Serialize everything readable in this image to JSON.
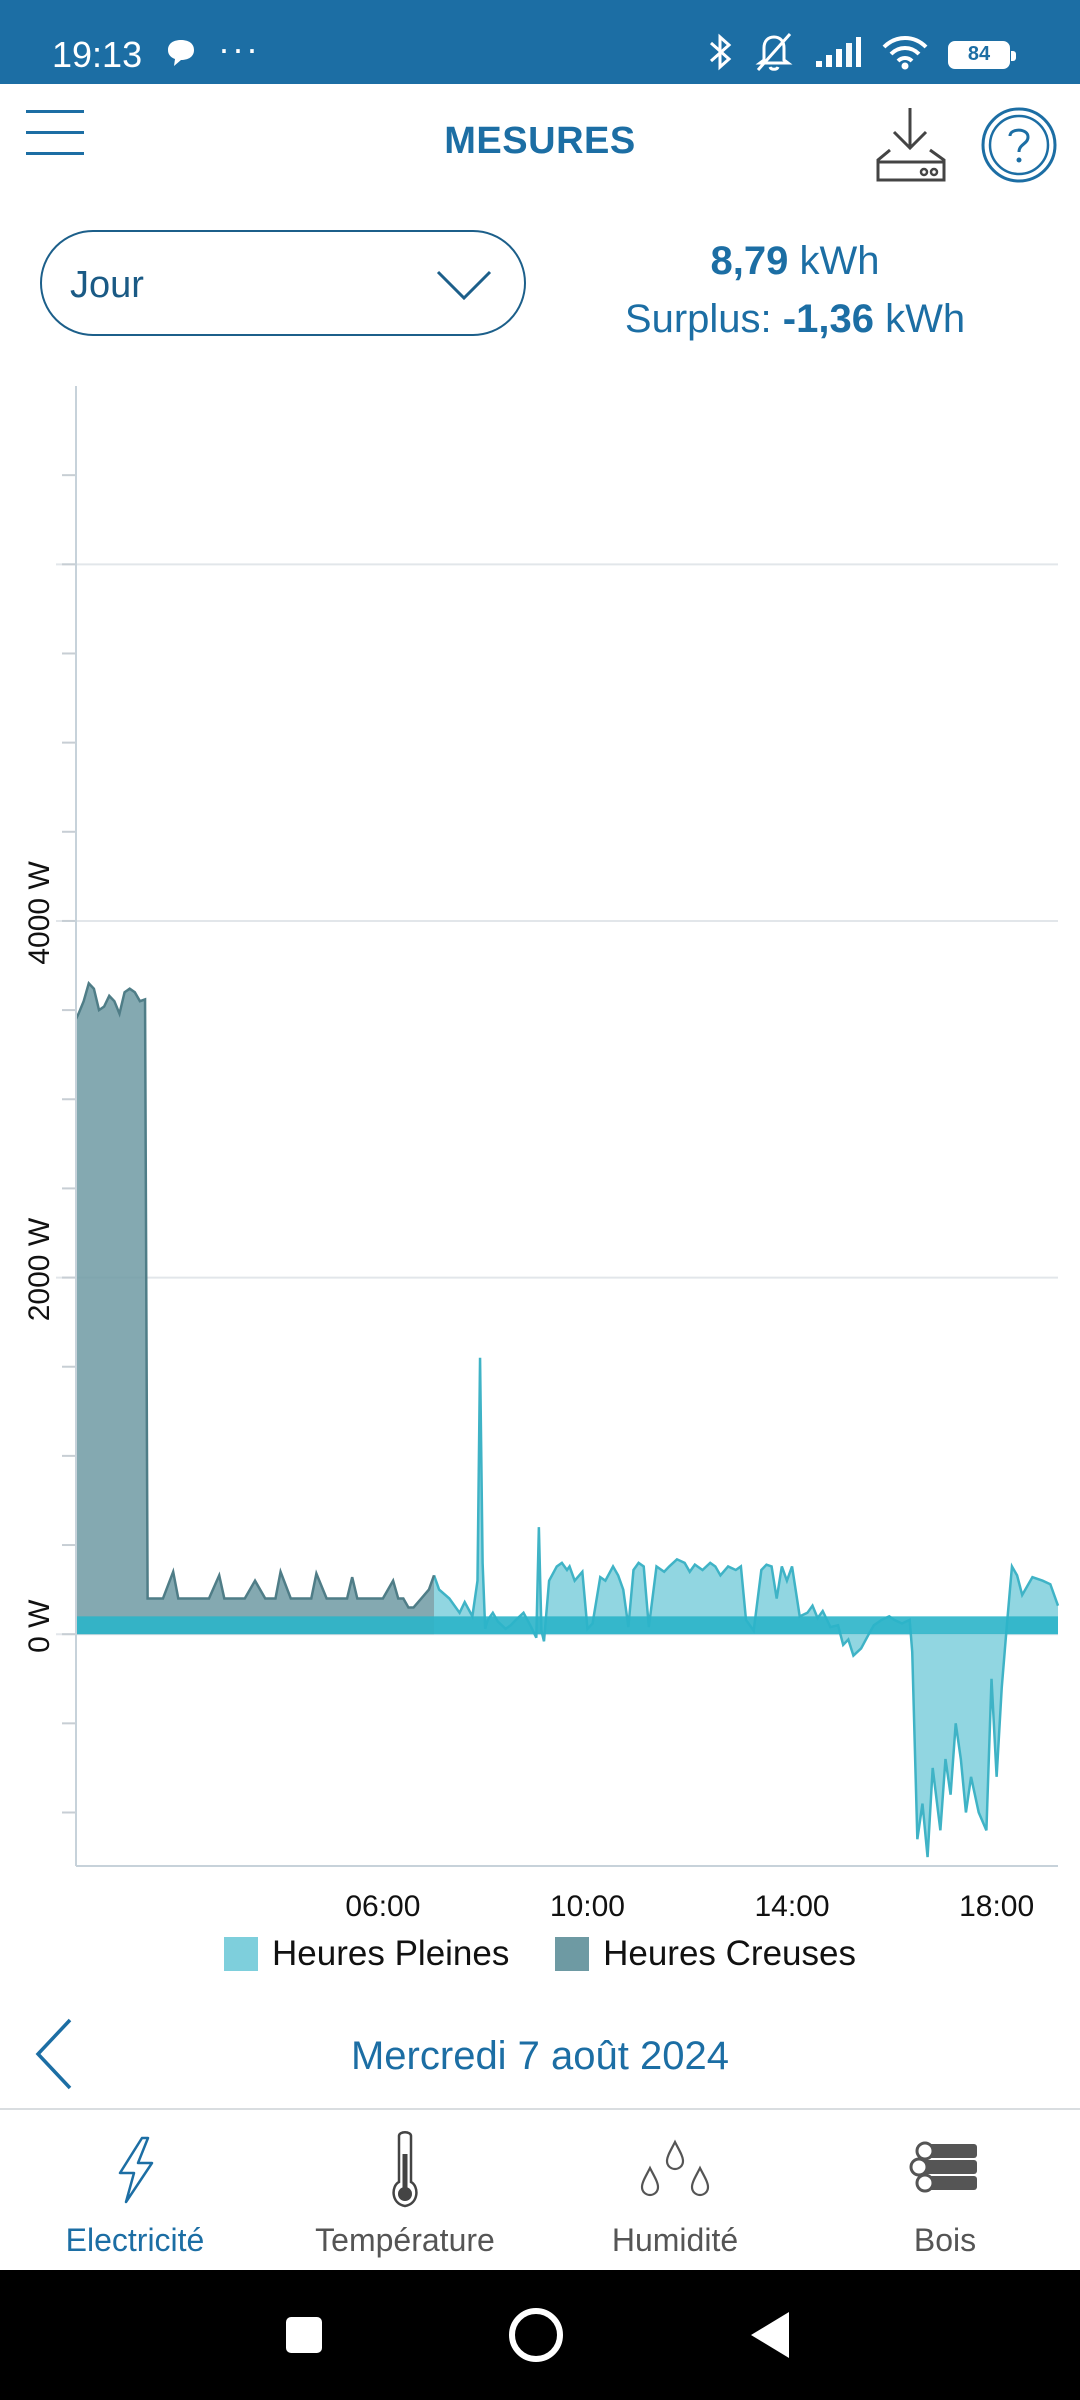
{
  "status_bar": {
    "time": "19:13",
    "battery": "84"
  },
  "header": {
    "title": "MESURES"
  },
  "period_select": {
    "value": "Jour"
  },
  "totals": {
    "energy_value": "8,79",
    "energy_unit": " kWh",
    "surplus_label": "Surplus: ",
    "surplus_value": "-1,36",
    "surplus_unit": " kWh"
  },
  "chart_data": {
    "type": "area",
    "ylabel": "",
    "y_ticks": [
      "0 W",
      "2000 W",
      "4000 W"
    ],
    "x_ticks": [
      "06:00",
      "10:00",
      "14:00",
      "18:00"
    ],
    "ylim": [
      -1300,
      7000
    ],
    "xlim": [
      0,
      19.2
    ],
    "grid": true,
    "legend_position": "bottom",
    "colors": {
      "pleines": "#7ecfdc",
      "pleines_line": "#3fb3c6",
      "creuses": "#6e9aa3",
      "creuses_line": "#4f7d87",
      "base": "#2bb4c9"
    },
    "series": [
      {
        "name": "Heures Pleines",
        "x": [
          7.0,
          7.1,
          7.3,
          7.5,
          7.6,
          7.75,
          7.85,
          7.9,
          7.95,
          8.0,
          8.05,
          8.15,
          8.25,
          8.4,
          8.5,
          8.6,
          8.75,
          8.9,
          9.0,
          9.05,
          9.1,
          9.15,
          9.25,
          9.4,
          9.5,
          9.6,
          9.65,
          9.75,
          9.9,
          10.0,
          10.1,
          10.25,
          10.35,
          10.5,
          10.6,
          10.7,
          10.8,
          10.9,
          11.0,
          11.1,
          11.2,
          11.35,
          11.5,
          11.6,
          11.75,
          11.9,
          12.0,
          12.1,
          12.25,
          12.4,
          12.5,
          12.6,
          12.75,
          12.9,
          13.0,
          13.1,
          13.25,
          13.4,
          13.5,
          13.6,
          13.7,
          13.8,
          13.9,
          14.0,
          14.15,
          14.3,
          14.4,
          14.5,
          14.6,
          14.75,
          14.9,
          15.0,
          15.1,
          15.2,
          15.35,
          15.5,
          15.6,
          15.75,
          15.9,
          16.0,
          16.15,
          16.3,
          16.35,
          16.45,
          16.55,
          16.65,
          16.75,
          16.9,
          17.0,
          17.1,
          17.2,
          17.3,
          17.4,
          17.5,
          17.65,
          17.8,
          17.9,
          18.0,
          18.1,
          18.2,
          18.3,
          18.4,
          18.5,
          18.7,
          18.9,
          19.05,
          19.2
        ],
        "values": [
          330,
          250,
          200,
          120,
          180,
          100,
          300,
          1550,
          400,
          30,
          80,
          120,
          70,
          30,
          50,
          80,
          120,
          40,
          -20,
          600,
          20,
          -40,
          300,
          380,
          400,
          360,
          380,
          300,
          350,
          30,
          60,
          320,
          300,
          380,
          330,
          250,
          40,
          360,
          400,
          380,
          40,
          380,
          350,
          380,
          420,
          400,
          350,
          390,
          360,
          400,
          380,
          330,
          380,
          360,
          380,
          80,
          20,
          360,
          390,
          380,
          200,
          380,
          300,
          380,
          100,
          120,
          160,
          90,
          130,
          40,
          50,
          -60,
          -30,
          -120,
          -80,
          0,
          50,
          80,
          100,
          80,
          60,
          80,
          -100,
          -1150,
          -950,
          -1250,
          -750,
          -1100,
          -700,
          -900,
          -500,
          -700,
          -1000,
          -800,
          -1000,
          -1100,
          -250,
          -800,
          -300,
          50,
          380,
          330,
          220,
          320,
          300,
          280,
          160
        ],
        "baseline": 100
      },
      {
        "name": "Heures Creuses",
        "x": [
          0,
          0.05,
          0.15,
          0.25,
          0.35,
          0.45,
          0.55,
          0.65,
          0.75,
          0.85,
          0.95,
          1.05,
          1.15,
          1.25,
          1.35,
          1.4,
          1.5,
          1.7,
          1.9,
          2.0,
          2.1,
          2.2,
          2.4,
          2.6,
          2.8,
          2.9,
          3.0,
          3.1,
          3.3,
          3.5,
          3.7,
          3.8,
          3.9,
          4.0,
          4.2,
          4.4,
          4.5,
          4.6,
          4.7,
          4.9,
          5.1,
          5.3,
          5.4,
          5.5,
          5.6,
          5.8,
          6.0,
          6.2,
          6.3,
          6.4,
          6.5,
          6.6,
          6.75,
          6.9,
          7.0
        ],
        "values": [
          3450,
          3480,
          3550,
          3650,
          3620,
          3500,
          3520,
          3580,
          3550,
          3480,
          3600,
          3620,
          3600,
          3550,
          3560,
          200,
          200,
          200,
          350,
          200,
          200,
          200,
          200,
          200,
          330,
          200,
          200,
          200,
          200,
          300,
          200,
          200,
          200,
          350,
          200,
          200,
          200,
          200,
          340,
          200,
          200,
          200,
          320,
          200,
          200,
          200,
          200,
          300,
          200,
          200,
          150,
          150,
          200,
          250,
          330
        ],
        "baseline": 100
      }
    ]
  },
  "legend": {
    "pleines": "Heures Pleines",
    "creuses": "Heures Creuses"
  },
  "date_nav": {
    "date": "Mercredi 7 août 2024"
  },
  "bottom_nav": [
    {
      "label": "Electricité",
      "icon": "lightning-icon"
    },
    {
      "label": "Température",
      "icon": "thermometer-icon"
    },
    {
      "label": "Humidité",
      "icon": "droplets-icon"
    },
    {
      "label": "Bois",
      "icon": "logs-icon"
    }
  ]
}
